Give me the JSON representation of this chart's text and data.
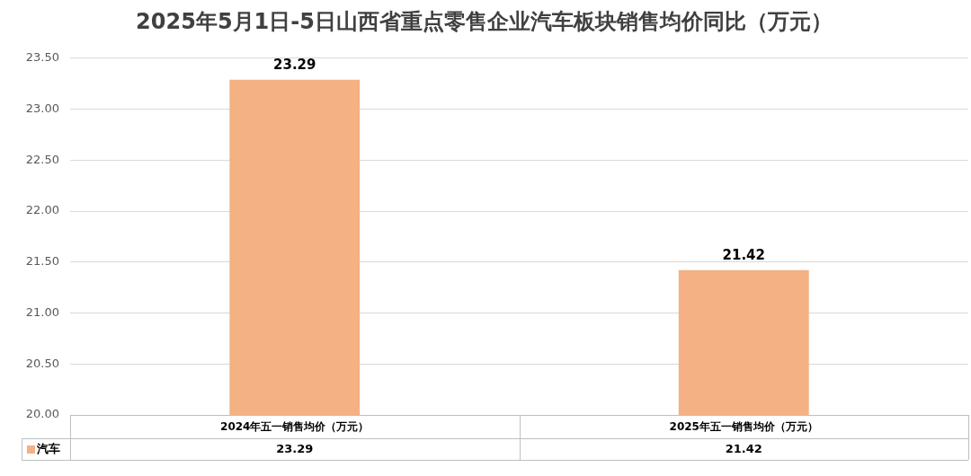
{
  "chart_data": {
    "type": "bar",
    "title": "2025年5月1日-5日山西省重点零售企业汽车板块销售均价同比（万元）",
    "categories": [
      "2024年五一销售均价（万元）",
      "2025年五一销售均价（万元）"
    ],
    "series": [
      {
        "name": "汽车",
        "color": "#f4b183",
        "values": [
          23.29,
          21.42
        ]
      }
    ],
    "ylim": [
      20,
      23.5
    ],
    "yticks": [
      {
        "value": 20,
        "label": "20.00"
      },
      {
        "value": 20.5,
        "label": "20.50"
      },
      {
        "value": 21,
        "label": "21.00"
      },
      {
        "value": 21.5,
        "label": "21.50"
      },
      {
        "value": 22,
        "label": "22.00"
      },
      {
        "value": 22.5,
        "label": "22.50"
      },
      {
        "value": 23,
        "label": "23.00"
      },
      {
        "value": 23.5,
        "label": "23.50"
      }
    ],
    "grid": "y",
    "legend": "bottom left",
    "data_labels": true,
    "annotations": [
      "23.29",
      "21.42"
    ]
  }
}
